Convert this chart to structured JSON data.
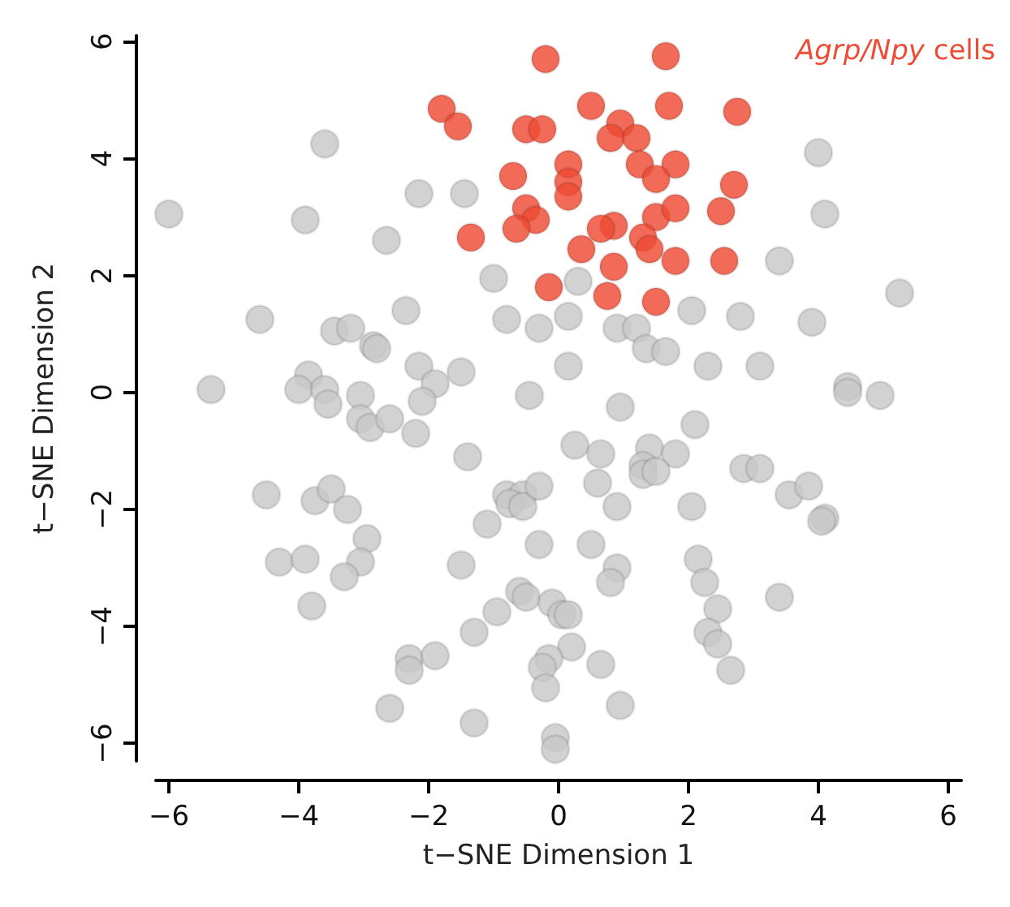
{
  "chart_data": {
    "type": "scatter",
    "xlabel": "t−SNE Dimension 1",
    "ylabel": "t−SNE Dimension 2",
    "xlim": [
      -6.2,
      6.2
    ],
    "ylim": [
      -6.3,
      6.1
    ],
    "xticks": [
      {
        "value": -6,
        "label": "−6"
      },
      {
        "value": -4,
        "label": "−4"
      },
      {
        "value": -2,
        "label": "−2"
      },
      0,
      2,
      4,
      6
    ],
    "yticks": [
      {
        "value": -6,
        "label": "−6"
      },
      {
        "value": -4,
        "label": "−4"
      },
      {
        "value": -2,
        "label": "−2"
      },
      0,
      2,
      4,
      6
    ],
    "grid": false,
    "marker": "circle",
    "legend": "top right",
    "series": [
      {
        "color": "#c8c8c8",
        "x": [
          -6.0,
          -3.9,
          -2.65,
          -1.0,
          0.3,
          -4.6,
          -2.35,
          -3.45,
          -3.2,
          -2.85,
          -2.8,
          -0.8,
          -0.3,
          0.15,
          -5.35,
          -3.85,
          -4.0,
          -3.6,
          -3.55,
          -3.05,
          -2.15,
          -1.9,
          -1.5,
          -2.1,
          -3.05,
          -2.9,
          -2.6,
          -2.2,
          -0.45,
          0.25,
          -1.4,
          -4.5,
          -3.75,
          -3.5,
          -3.25,
          -0.8,
          -0.55,
          -0.75,
          -0.55,
          -0.3,
          0.15,
          4.1,
          3.4,
          5.25,
          0.9,
          1.2,
          1.35,
          1.65,
          2.05,
          2.8,
          3.9,
          2.3,
          3.1,
          4.45,
          4.45,
          4.95,
          0.95,
          2.1,
          0.65,
          1.4,
          1.8,
          1.3,
          1.3,
          1.5,
          0.6,
          2.85,
          3.1,
          3.55,
          3.85,
          0.9,
          2.05,
          4.1,
          -2.95,
          -4.3,
          -3.9,
          -3.05,
          -3.3,
          -3.8,
          -1.1,
          -0.3,
          -1.5,
          -0.6,
          -0.5,
          -0.95,
          -0.1,
          0.05,
          0.15,
          -1.3,
          -2.3,
          -2.3,
          -1.9,
          0.2,
          -0.15,
          -0.25,
          -0.2,
          -2.6,
          -1.3,
          -0.05,
          -0.05,
          4.05,
          0.5,
          0.9,
          0.8,
          2.15,
          2.25,
          2.45,
          2.3,
          2.45,
          2.65,
          3.4,
          0.65,
          0.95,
          -3.6,
          4.0,
          -2.15,
          -1.45
        ],
        "values": [
          3.05,
          2.95,
          2.6,
          1.95,
          1.9,
          1.25,
          1.4,
          1.05,
          1.1,
          0.8,
          0.75,
          1.25,
          1.1,
          1.3,
          0.05,
          0.3,
          0.05,
          0.05,
          -0.2,
          -0.05,
          0.45,
          0.15,
          0.35,
          -0.15,
          -0.45,
          -0.6,
          -0.45,
          -0.7,
          -0.05,
          -0.9,
          -1.1,
          -1.75,
          -1.85,
          -1.65,
          -2.0,
          -1.75,
          -1.75,
          -1.9,
          -1.95,
          -1.6,
          0.45,
          3.05,
          2.25,
          1.7,
          1.1,
          1.1,
          0.75,
          0.7,
          1.4,
          1.3,
          1.2,
          0.45,
          0.45,
          0.1,
          0.0,
          -0.05,
          -0.25,
          -0.55,
          -1.05,
          -0.95,
          -1.05,
          -1.25,
          -1.4,
          -1.35,
          -1.55,
          -1.3,
          -1.3,
          -1.75,
          -1.6,
          -1.95,
          -1.95,
          -2.15,
          -2.5,
          -2.9,
          -2.85,
          -2.9,
          -3.15,
          -3.65,
          -2.25,
          -2.6,
          -2.95,
          -3.4,
          -3.5,
          -3.75,
          -3.6,
          -3.8,
          -3.8,
          -4.1,
          -4.55,
          -4.75,
          -4.5,
          -4.35,
          -4.55,
          -4.7,
          -5.05,
          -5.4,
          -5.65,
          -5.9,
          -6.1,
          -2.2,
          -2.6,
          -3.0,
          -3.25,
          -2.85,
          -3.25,
          -3.7,
          -4.1,
          -4.3,
          -4.75,
          -3.5,
          -4.65,
          -5.35,
          4.25,
          4.1,
          3.4,
          3.4
        ]
      },
      {
        "name": "Agrp/Npy cells",
        "color": "#ee4b33",
        "x": [
          -0.2,
          1.65,
          -1.8,
          -1.55,
          0.5,
          0.95,
          0.8,
          1.2,
          1.7,
          2.75,
          -0.5,
          -0.25,
          0.15,
          -0.7,
          1.25,
          1.8,
          1.5,
          0.15,
          0.15,
          2.7,
          -0.5,
          -0.35,
          -0.65,
          -1.35,
          1.5,
          1.8,
          2.5,
          1.3,
          1.4,
          0.35,
          0.85,
          0.65,
          0.85,
          1.8,
          2.55,
          -0.15,
          0.75,
          1.5
        ],
        "values": [
          5.7,
          5.75,
          4.85,
          4.55,
          4.9,
          4.6,
          4.35,
          4.35,
          4.9,
          4.8,
          4.5,
          4.5,
          3.9,
          3.7,
          3.9,
          3.9,
          3.65,
          3.6,
          3.35,
          3.55,
          3.15,
          2.95,
          2.8,
          2.65,
          3.0,
          3.15,
          3.1,
          2.65,
          2.45,
          2.45,
          2.85,
          2.8,
          2.15,
          2.25,
          2.25,
          1.8,
          1.65,
          1.55
        ]
      }
    ]
  }
}
